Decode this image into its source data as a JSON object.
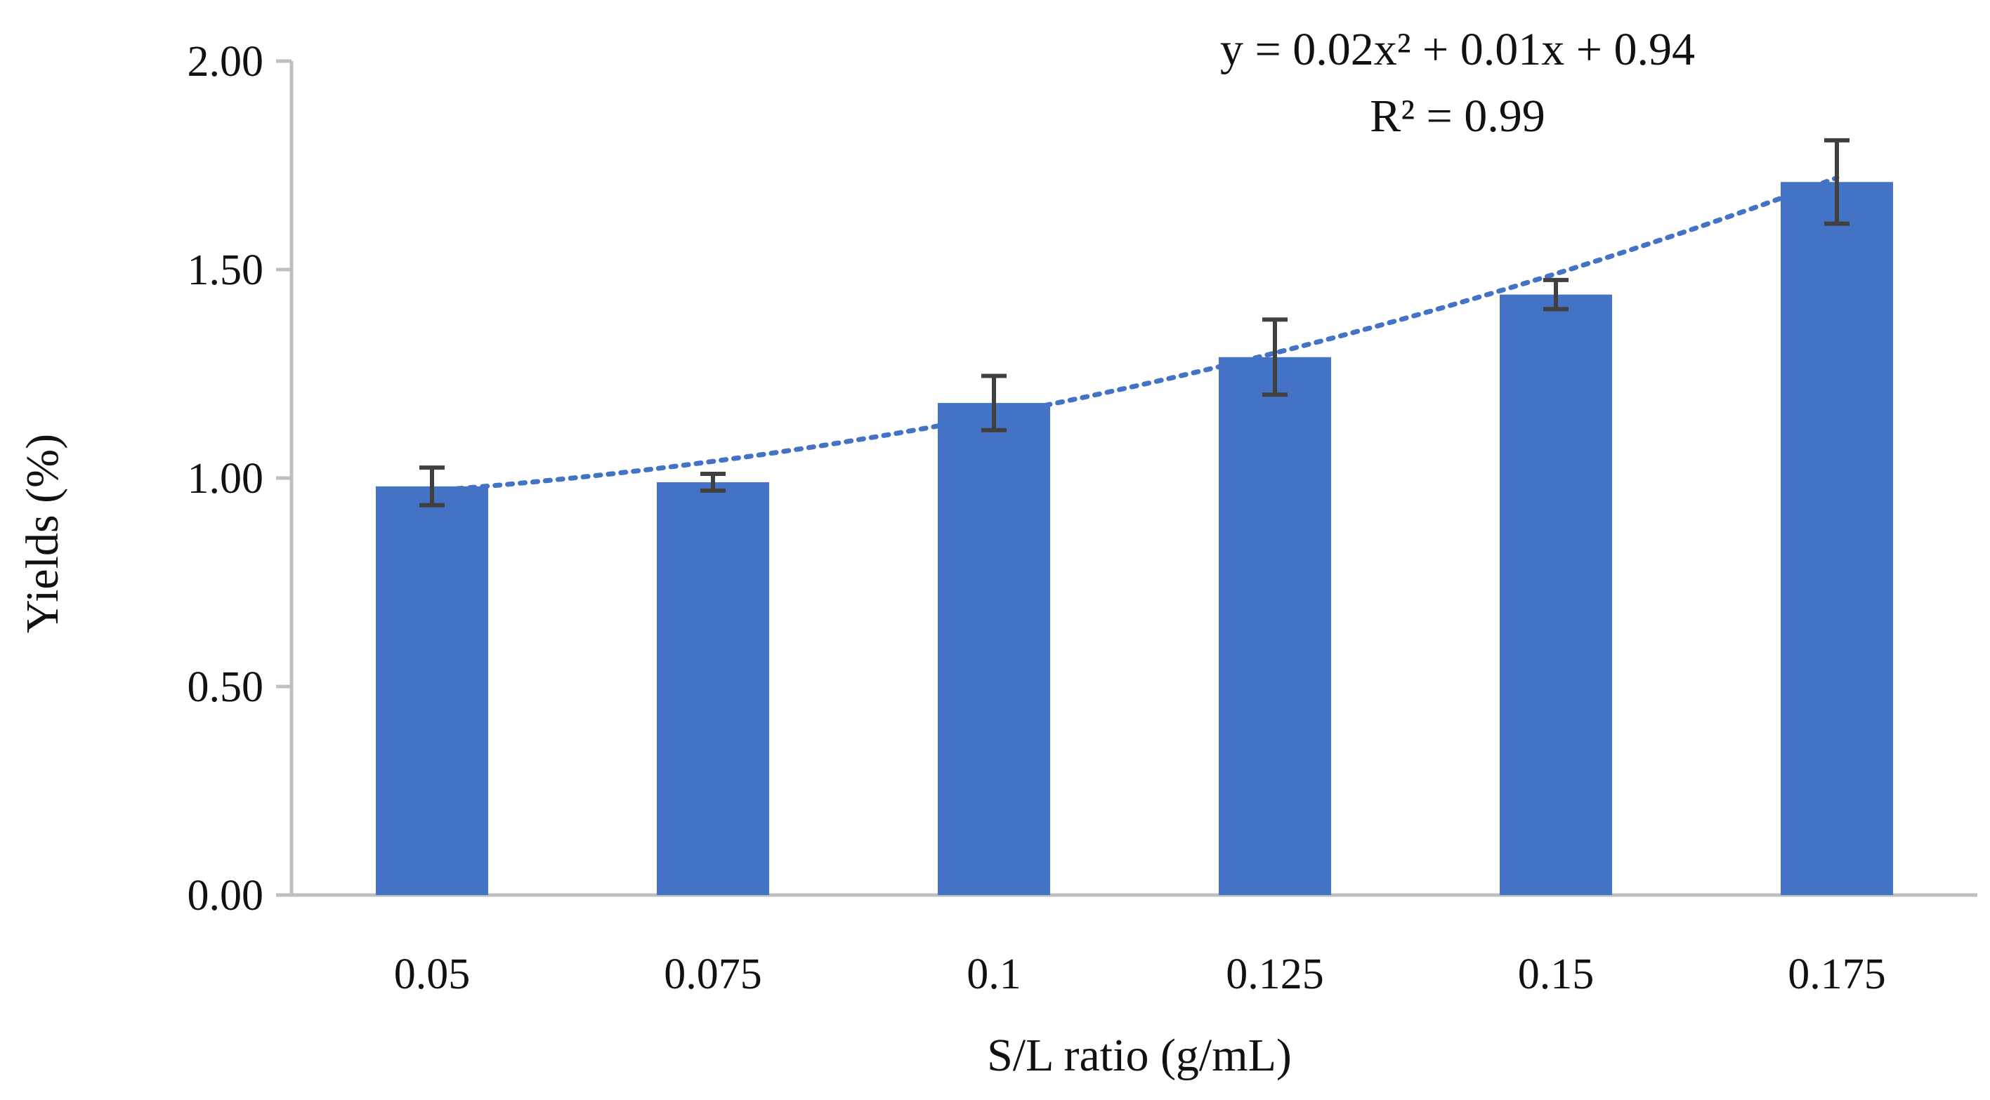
{
  "chart_data": {
    "type": "bar",
    "title": "",
    "xlabel": "S/L ratio (g/mL)",
    "ylabel": "Yields (%)",
    "categories": [
      "0.05",
      "0.075",
      "0.1",
      "0.125",
      "0.15",
      "0.175"
    ],
    "values": [
      0.98,
      0.99,
      1.18,
      1.29,
      1.44,
      1.71
    ],
    "errors": [
      0.045,
      0.02,
      0.065,
      0.09,
      0.035,
      0.1
    ],
    "ylim": [
      0,
      2
    ],
    "yticks": [
      "0.00",
      "0.50",
      "1.00",
      "1.50",
      "2.00"
    ],
    "ytick_values": [
      0,
      0.5,
      1,
      1.5,
      2
    ],
    "grid": false,
    "legend": "none",
    "trendline": {
      "type": "polynomial-2",
      "coefficients": [
        0.02,
        0.01,
        0.94
      ],
      "equation": "y = 0.02x² + 0.01x + 0.94",
      "r_squared": "R² = 0.99"
    },
    "colors": {
      "bar": "#4472c4",
      "trendline": "#4472c4",
      "error_bar": "#404040",
      "axis": "#bfbfbf"
    }
  }
}
